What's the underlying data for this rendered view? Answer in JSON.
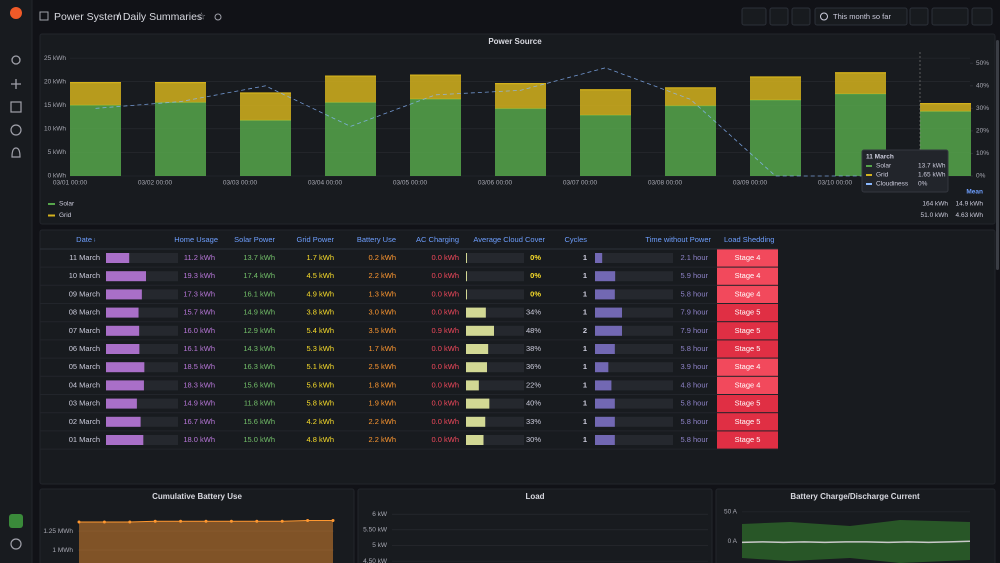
{
  "header": {
    "breadcrumb": "Power System",
    "title": "/ Daily Summaries",
    "time_range": "This month so far"
  },
  "power_source": {
    "type": "bar",
    "title": "Power Source",
    "stacked": true,
    "categories": [
      "03/01 00:00",
      "03/02 00:00",
      "03/03 00:00",
      "03/04 00:00",
      "03/05 00:00",
      "03/06 00:00",
      "03/07 00:00",
      "03/08 00:00",
      "03/09 00:00",
      "03/10 00:00",
      null
    ],
    "series": [
      {
        "name": "Solar",
        "color": "#56a64b",
        "values": [
          15.0,
          15.6,
          11.8,
          15.6,
          16.3,
          14.3,
          12.9,
          14.9,
          16.1,
          17.4,
          13.7
        ]
      },
      {
        "name": "Grid",
        "color": "#d4b21d",
        "values": [
          4.8,
          4.2,
          5.8,
          5.6,
          5.1,
          5.3,
          5.4,
          3.8,
          4.9,
          4.5,
          1.65
        ]
      },
      {
        "name": "Cloudiness",
        "color": "#8ab8ff",
        "axis": "y2",
        "values": [
          30,
          33,
          40,
          22,
          36,
          38,
          48,
          34,
          0,
          0,
          0
        ]
      }
    ],
    "ylim": [
      0,
      26.3
    ],
    "yticks": [
      {
        "value": 0,
        "label": "0 kWh"
      },
      {
        "value": 5,
        "label": "5 kWh"
      },
      {
        "value": 10,
        "label": "10 kWh"
      },
      {
        "value": 15,
        "label": "15 kWh"
      },
      {
        "value": 20,
        "label": "20 kWh"
      },
      {
        "value": 25,
        "label": "25 kWh"
      }
    ],
    "y2lim": [
      0,
      55
    ],
    "y2ticks": [
      {
        "value": 0,
        "label": "0%"
      },
      {
        "value": 10,
        "label": "10%"
      },
      {
        "value": 20,
        "label": "20%"
      },
      {
        "value": 30,
        "label": "30%"
      },
      {
        "value": 40,
        "label": "40%"
      },
      {
        "value": 50,
        "label": "50%"
      }
    ],
    "grid": true,
    "tooltip": {
      "title": "11 March",
      "values": [
        "13.7 kWh",
        "1.65 kWh",
        "0%"
      ]
    },
    "legend": {
      "header": "Mean",
      "rows": [
        [
          "164 kWh",
          "14.9 kWh"
        ],
        [
          "51.0 kWh",
          "4.63 kWh"
        ]
      ]
    }
  },
  "table": {
    "columns": [
      "Date",
      "Home Usage",
      "Solar Power",
      "Grid Power",
      "Battery Use",
      "AC Charging",
      "Average Cloud Cover",
      "Cycles",
      "Time without Power",
      "Load Shedding"
    ],
    "rows": [
      [
        "11 March",
        {
          "value": 11.2,
          "label": "11.2 kWh"
        },
        {
          "value": 13.7,
          "label": "13.7 kWh"
        },
        {
          "value": 1.7,
          "label": "1.7 kWh"
        },
        {
          "value": 0.2,
          "label": "0.2 kWh"
        },
        {
          "value": 0.0,
          "label": "0.0 kWh"
        },
        {
          "value": 0,
          "label": "0%"
        },
        1,
        {
          "value": 2.1,
          "label": "2.1 hour"
        },
        "Stage 4"
      ],
      [
        "10 March",
        {
          "value": 19.3,
          "label": "19.3 kWh"
        },
        {
          "value": 17.4,
          "label": "17.4 kWh"
        },
        {
          "value": 4.5,
          "label": "4.5 kWh"
        },
        {
          "value": 2.2,
          "label": "2.2 kWh"
        },
        {
          "value": 0.0,
          "label": "0.0 kWh"
        },
        {
          "value": 0,
          "label": "0%"
        },
        1,
        {
          "value": 5.9,
          "label": "5.9 hour"
        },
        "Stage 4"
      ],
      [
        "09 March",
        {
          "value": 17.3,
          "label": "17.3 kWh"
        },
        {
          "value": 16.1,
          "label": "16.1 kWh"
        },
        {
          "value": 4.9,
          "label": "4.9 kWh"
        },
        {
          "value": 1.3,
          "label": "1.3 kWh"
        },
        {
          "value": 0.0,
          "label": "0.0 kWh"
        },
        {
          "value": 0,
          "label": "0%"
        },
        1,
        {
          "value": 5.8,
          "label": "5.8 hour"
        },
        "Stage 4"
      ],
      [
        "08 March",
        {
          "value": 15.7,
          "label": "15.7 kWh"
        },
        {
          "value": 14.9,
          "label": "14.9 kWh"
        },
        {
          "value": 3.8,
          "label": "3.8 kWh"
        },
        {
          "value": 3.0,
          "label": "3.0 kWh"
        },
        {
          "value": 0.0,
          "label": "0.0 kWh"
        },
        {
          "value": 34,
          "label": "34%"
        },
        1,
        {
          "value": 7.9,
          "label": "7.9 hour"
        },
        "Stage 5"
      ],
      [
        "07 March",
        {
          "value": 16.0,
          "label": "16.0 kWh"
        },
        {
          "value": 12.9,
          "label": "12.9 kWh"
        },
        {
          "value": 5.4,
          "label": "5.4 kWh"
        },
        {
          "value": 3.5,
          "label": "3.5 kWh"
        },
        {
          "value": 0.9,
          "label": "0.9 kWh"
        },
        {
          "value": 48,
          "label": "48%"
        },
        2,
        {
          "value": 7.9,
          "label": "7.9 hour"
        },
        "Stage 5"
      ],
      [
        "06 March",
        {
          "value": 16.1,
          "label": "16.1 kWh"
        },
        {
          "value": 14.3,
          "label": "14.3 kWh"
        },
        {
          "value": 5.3,
          "label": "5.3 kWh"
        },
        {
          "value": 1.7,
          "label": "1.7 kWh"
        },
        {
          "value": 0.0,
          "label": "0.0 kWh"
        },
        {
          "value": 38,
          "label": "38%"
        },
        1,
        {
          "value": 5.8,
          "label": "5.8 hour"
        },
        "Stage 5"
      ],
      [
        "05 March",
        {
          "value": 18.5,
          "label": "18.5 kWh"
        },
        {
          "value": 16.3,
          "label": "16.3 kWh"
        },
        {
          "value": 5.1,
          "label": "5.1 kWh"
        },
        {
          "value": 2.5,
          "label": "2.5 kWh"
        },
        {
          "value": 0.0,
          "label": "0.0 kWh"
        },
        {
          "value": 36,
          "label": "36%"
        },
        1,
        {
          "value": 3.9,
          "label": "3.9 hour"
        },
        "Stage 4"
      ],
      [
        "04 March",
        {
          "value": 18.3,
          "label": "18.3 kWh"
        },
        {
          "value": 15.6,
          "label": "15.6 kWh"
        },
        {
          "value": 5.6,
          "label": "5.6 kWh"
        },
        {
          "value": 1.8,
          "label": "1.8 kWh"
        },
        {
          "value": 0.0,
          "label": "0.0 kWh"
        },
        {
          "value": 22,
          "label": "22%"
        },
        1,
        {
          "value": 4.8,
          "label": "4.8 hour"
        },
        "Stage 4"
      ],
      [
        "03 March",
        {
          "value": 14.9,
          "label": "14.9 kWh"
        },
        {
          "value": 11.8,
          "label": "11.8 kWh"
        },
        {
          "value": 5.8,
          "label": "5.8 kWh"
        },
        {
          "value": 1.9,
          "label": "1.9 kWh"
        },
        {
          "value": 0.0,
          "label": "0.0 kWh"
        },
        {
          "value": 40,
          "label": "40%"
        },
        1,
        {
          "value": 5.8,
          "label": "5.8 hour"
        },
        "Stage 5"
      ],
      [
        "02 March",
        {
          "value": 16.7,
          "label": "16.7 kWh"
        },
        {
          "value": 15.6,
          "label": "15.6 kWh"
        },
        {
          "value": 4.2,
          "label": "4.2 kWh"
        },
        {
          "value": 2.2,
          "label": "2.2 kWh"
        },
        {
          "value": 0.0,
          "label": "0.0 kWh"
        },
        {
          "value": 33,
          "label": "33%"
        },
        1,
        {
          "value": 5.8,
          "label": "5.8 hour"
        },
        "Stage 5"
      ],
      [
        "01 March",
        {
          "value": 18.0,
          "label": "18.0 kWh"
        },
        {
          "value": 15.0,
          "label": "15.0 kWh"
        },
        {
          "value": 4.8,
          "label": "4.8 kWh"
        },
        {
          "value": 2.2,
          "label": "2.2 kWh"
        },
        {
          "value": 0.0,
          "label": "0.0 kWh"
        },
        {
          "value": 30,
          "label": "30%"
        },
        1,
        {
          "value": 5.8,
          "label": "5.8 hour"
        },
        "Stage 5"
      ]
    ]
  },
  "cumulative": {
    "type": "line",
    "title": "Cumulative Battery Use",
    "color": "#ff9830",
    "values": [
      1.37,
      1.37,
      1.37,
      1.38,
      1.38,
      1.38,
      1.38,
      1.38,
      1.38,
      1.39,
      1.39
    ],
    "ylim": [
      0.83,
      1.58
    ],
    "yticks": [
      {
        "value": 1,
        "label": "1 MWh"
      },
      {
        "value": 1.25,
        "label": "1.25 MWh"
      }
    ]
  },
  "load": {
    "type": "line",
    "title": "Load",
    "ylim": [
      4.44,
      6.26
    ],
    "yticks": [
      {
        "value": 6,
        "label": "6 kW"
      },
      {
        "value": 5.5,
        "label": "5.50 kW"
      },
      {
        "value": 5,
        "label": "5 kW"
      },
      {
        "value": 4.5,
        "label": "4.50 kW"
      }
    ]
  },
  "battery": {
    "type": "line",
    "title": "Battery Charge/Discharge Current",
    "color": "#c8c8c8",
    "values": [
      -2,
      -1,
      -2,
      -1,
      -2,
      -1,
      -1,
      -2,
      -1,
      -2,
      -1,
      0
    ],
    "ylim": [
      -37,
      60
    ],
    "yticks": [
      {
        "value": 0,
        "label": "0 A"
      },
      {
        "value": 50,
        "label": "50 A"
      }
    ]
  }
}
